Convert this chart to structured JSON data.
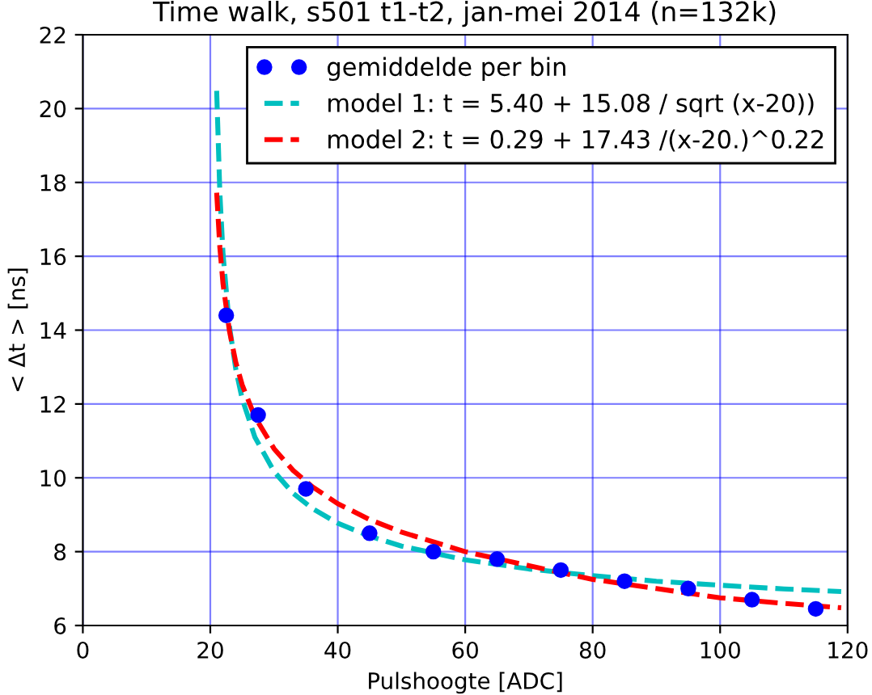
{
  "chart_data": {
    "type": "scatter",
    "title": "Time walk, s501 t1-t2, jan-mei 2014 (n=132k)",
    "xlabel": "Pulshoogte [ADC]",
    "ylabel": "< Δt > [ns]",
    "xlim": [
      0,
      120
    ],
    "ylim": [
      6,
      22
    ],
    "xticks": [
      0,
      20,
      40,
      60,
      80,
      100,
      120
    ],
    "yticks": [
      6,
      8,
      10,
      12,
      14,
      16,
      18,
      20,
      22
    ],
    "grid": true,
    "legend": "top right",
    "series": [
      {
        "name": "gemiddelde per bin",
        "marker": "circle",
        "color": "#0000ff",
        "x": [
          22.5,
          27.5,
          35,
          45,
          55,
          65,
          75,
          85,
          95,
          105,
          115
        ],
        "values": [
          14.4,
          11.7,
          9.7,
          8.5,
          8.0,
          7.8,
          7.5,
          7.2,
          7.0,
          6.7,
          6.45
        ]
      },
      {
        "name": "model 1: t = 5.40 + 15.08 / sqrt (x-20))",
        "type": "line",
        "line_style": "dashed",
        "color": "#00bfbf",
        "x": [
          21,
          21.5,
          22,
          23,
          24,
          25,
          27,
          30,
          33,
          36,
          40,
          45,
          50,
          60,
          70,
          80,
          90,
          100,
          110,
          119
        ],
        "values": [
          20.48,
          17.71,
          16.06,
          14.11,
          12.94,
          12.14,
          11.1,
          10.17,
          9.58,
          9.17,
          8.77,
          8.42,
          8.15,
          7.78,
          7.53,
          7.35,
          7.2,
          7.09,
          6.99,
          6.92
        ]
      },
      {
        "name": "model 2: t = 0.29 + 17.43 /(x-20.)^0.22",
        "type": "line",
        "line_style": "dashed",
        "color": "#ff0000",
        "x": [
          21,
          21.5,
          22,
          23,
          24,
          25,
          27,
          30,
          33,
          36,
          40,
          45,
          50,
          60,
          70,
          80,
          90,
          100,
          110,
          119
        ],
        "values": [
          17.72,
          16.24,
          15.25,
          13.98,
          13.13,
          12.52,
          11.65,
          10.79,
          10.2,
          9.76,
          9.3,
          8.87,
          8.53,
          8.0,
          7.62,
          7.25,
          7.0,
          6.75,
          6.6,
          6.48
        ]
      }
    ]
  }
}
